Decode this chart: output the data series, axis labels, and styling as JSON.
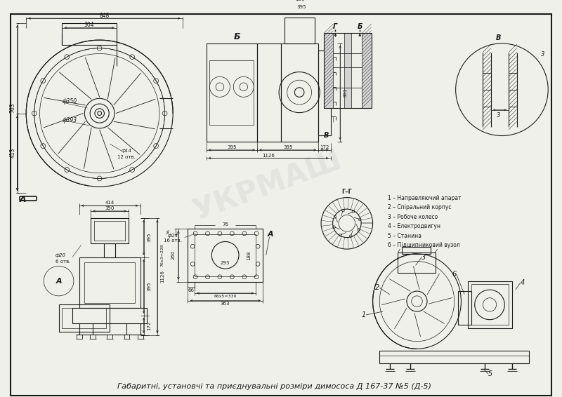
{
  "bg_color": "#f0f0eb",
  "line_color": "#1a1a1a",
  "title": "Габаритні, установчі та приєднувальні розміри димососа Д 167-37 №5 (Д-5)",
  "legend_items": [
    "1 – Направляючий апарат",
    "2 – Спіральний корпус",
    "3 – Робоче колесо",
    "4 – Електродвигун",
    "5 – Станина",
    "6 – Підшипниковий вузол"
  ]
}
